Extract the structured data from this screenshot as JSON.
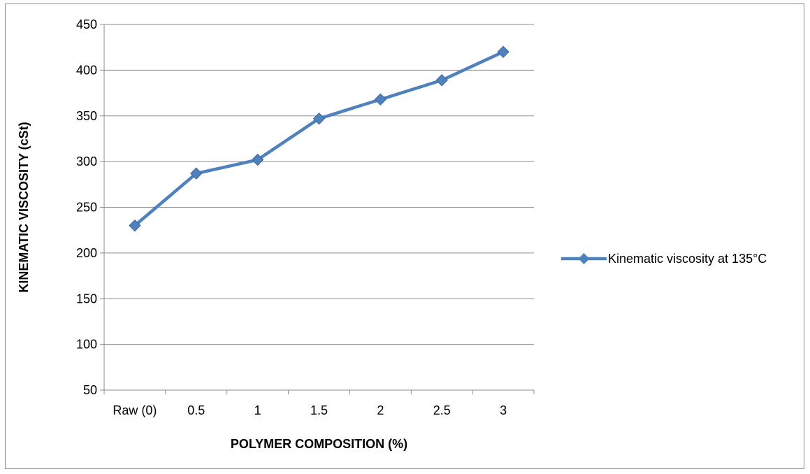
{
  "chart_data": {
    "type": "line",
    "categories": [
      "Raw (0)",
      "0.5",
      "1",
      "1.5",
      "2",
      "2.5",
      "3"
    ],
    "series": [
      {
        "name": "Kinematic viscosity at 135°C",
        "values": [
          230,
          287,
          302,
          347,
          368,
          389,
          420
        ],
        "color": "#4f81bd"
      }
    ],
    "xlabel": "POLYMER COMPOSITION (%)",
    "ylabel": "KINEMATIC VISCOSITY (cSt)",
    "ylim": [
      50,
      450
    ],
    "yticks": [
      "50",
      "100",
      "150",
      "200",
      "250",
      "300",
      "350",
      "400",
      "450"
    ],
    "grid": true,
    "legend_position": "right",
    "marker": "diamond"
  }
}
